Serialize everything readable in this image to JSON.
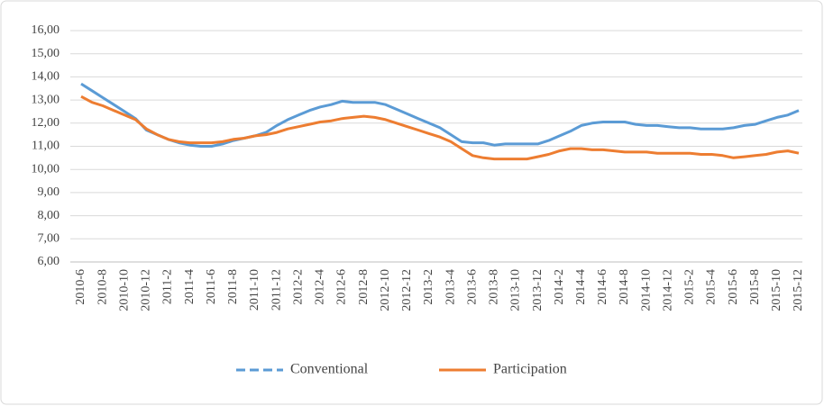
{
  "chart_data": {
    "type": "line",
    "categories": [
      "2010-6",
      null,
      "2010-8",
      null,
      "2010-10",
      null,
      "2010-12",
      null,
      "2011-2",
      null,
      "2011-4",
      null,
      "2011-6",
      null,
      "2011-8",
      null,
      "2011-10",
      null,
      "2011-12",
      null,
      "2012-2",
      null,
      "2012-4",
      null,
      "2012-6",
      null,
      "2012-8",
      null,
      "2012-10",
      null,
      "2012-12",
      null,
      "2013-2",
      null,
      "2013-4",
      null,
      "2013-6",
      null,
      "2013-8",
      null,
      "2013-10",
      null,
      "2013-12",
      null,
      "2014-2",
      null,
      "2014-4",
      null,
      "2014-6",
      null,
      "2014-8",
      null,
      "2014-10",
      null,
      "2014-12",
      null,
      "2015-2",
      null,
      "2015-4",
      null,
      "2015-6",
      null,
      "2015-8",
      null,
      "2015-10",
      null,
      "2015-12"
    ],
    "series": [
      {
        "name": "Conventional",
        "color": "#5b9bd5",
        "dashed_legend": true,
        "values": [
          13.7,
          13.4,
          13.1,
          12.8,
          12.5,
          12.2,
          11.7,
          11.5,
          11.3,
          11.15,
          11.05,
          11.0,
          11.0,
          11.1,
          11.25,
          11.35,
          11.45,
          11.6,
          11.9,
          12.15,
          12.35,
          12.55,
          12.7,
          12.8,
          12.95,
          12.9,
          12.9,
          12.9,
          12.8,
          12.6,
          12.4,
          12.2,
          12.0,
          11.8,
          11.5,
          11.2,
          11.15,
          11.15,
          11.05,
          11.1,
          11.1,
          11.1,
          11.1,
          11.25,
          11.45,
          11.65,
          11.9,
          12.0,
          12.05,
          12.05,
          12.05,
          11.95,
          11.9,
          11.9,
          11.85,
          11.8,
          11.8,
          11.75,
          11.75,
          11.75,
          11.8,
          11.9,
          11.95,
          12.1,
          12.25,
          12.35,
          12.55
        ]
      },
      {
        "name": "Participation",
        "color": "#ed7d31",
        "dashed_legend": false,
        "values": [
          13.15,
          12.9,
          12.75,
          12.55,
          12.35,
          12.15,
          11.75,
          11.5,
          11.3,
          11.2,
          11.15,
          11.15,
          11.15,
          11.2,
          11.3,
          11.35,
          11.45,
          11.5,
          11.6,
          11.75,
          11.85,
          11.95,
          12.05,
          12.1,
          12.2,
          12.25,
          12.3,
          12.25,
          12.15,
          12.0,
          11.85,
          11.7,
          11.55,
          11.4,
          11.2,
          10.9,
          10.6,
          10.5,
          10.45,
          10.45,
          10.45,
          10.45,
          10.55,
          10.65,
          10.8,
          10.9,
          10.9,
          10.85,
          10.85,
          10.8,
          10.75,
          10.75,
          10.75,
          10.7,
          10.7,
          10.7,
          10.7,
          10.65,
          10.65,
          10.6,
          10.5,
          10.55,
          10.6,
          10.65,
          10.75,
          10.8,
          10.7
        ]
      }
    ],
    "ylim": [
      6,
      16
    ],
    "yticks": [
      {
        "value": 6,
        "label": "6,00"
      },
      {
        "value": 7,
        "label": "7,00"
      },
      {
        "value": 8,
        "label": "8,00"
      },
      {
        "value": 9,
        "label": "9,00"
      },
      {
        "value": 10,
        "label": "10,00"
      },
      {
        "value": 11,
        "label": "11,00"
      },
      {
        "value": 12,
        "label": "12,00"
      },
      {
        "value": 13,
        "label": "13,00"
      },
      {
        "value": 14,
        "label": "14,00"
      },
      {
        "value": 15,
        "label": "15,00"
      },
      {
        "value": 16,
        "label": "16,00"
      }
    ],
    "grid": true
  }
}
